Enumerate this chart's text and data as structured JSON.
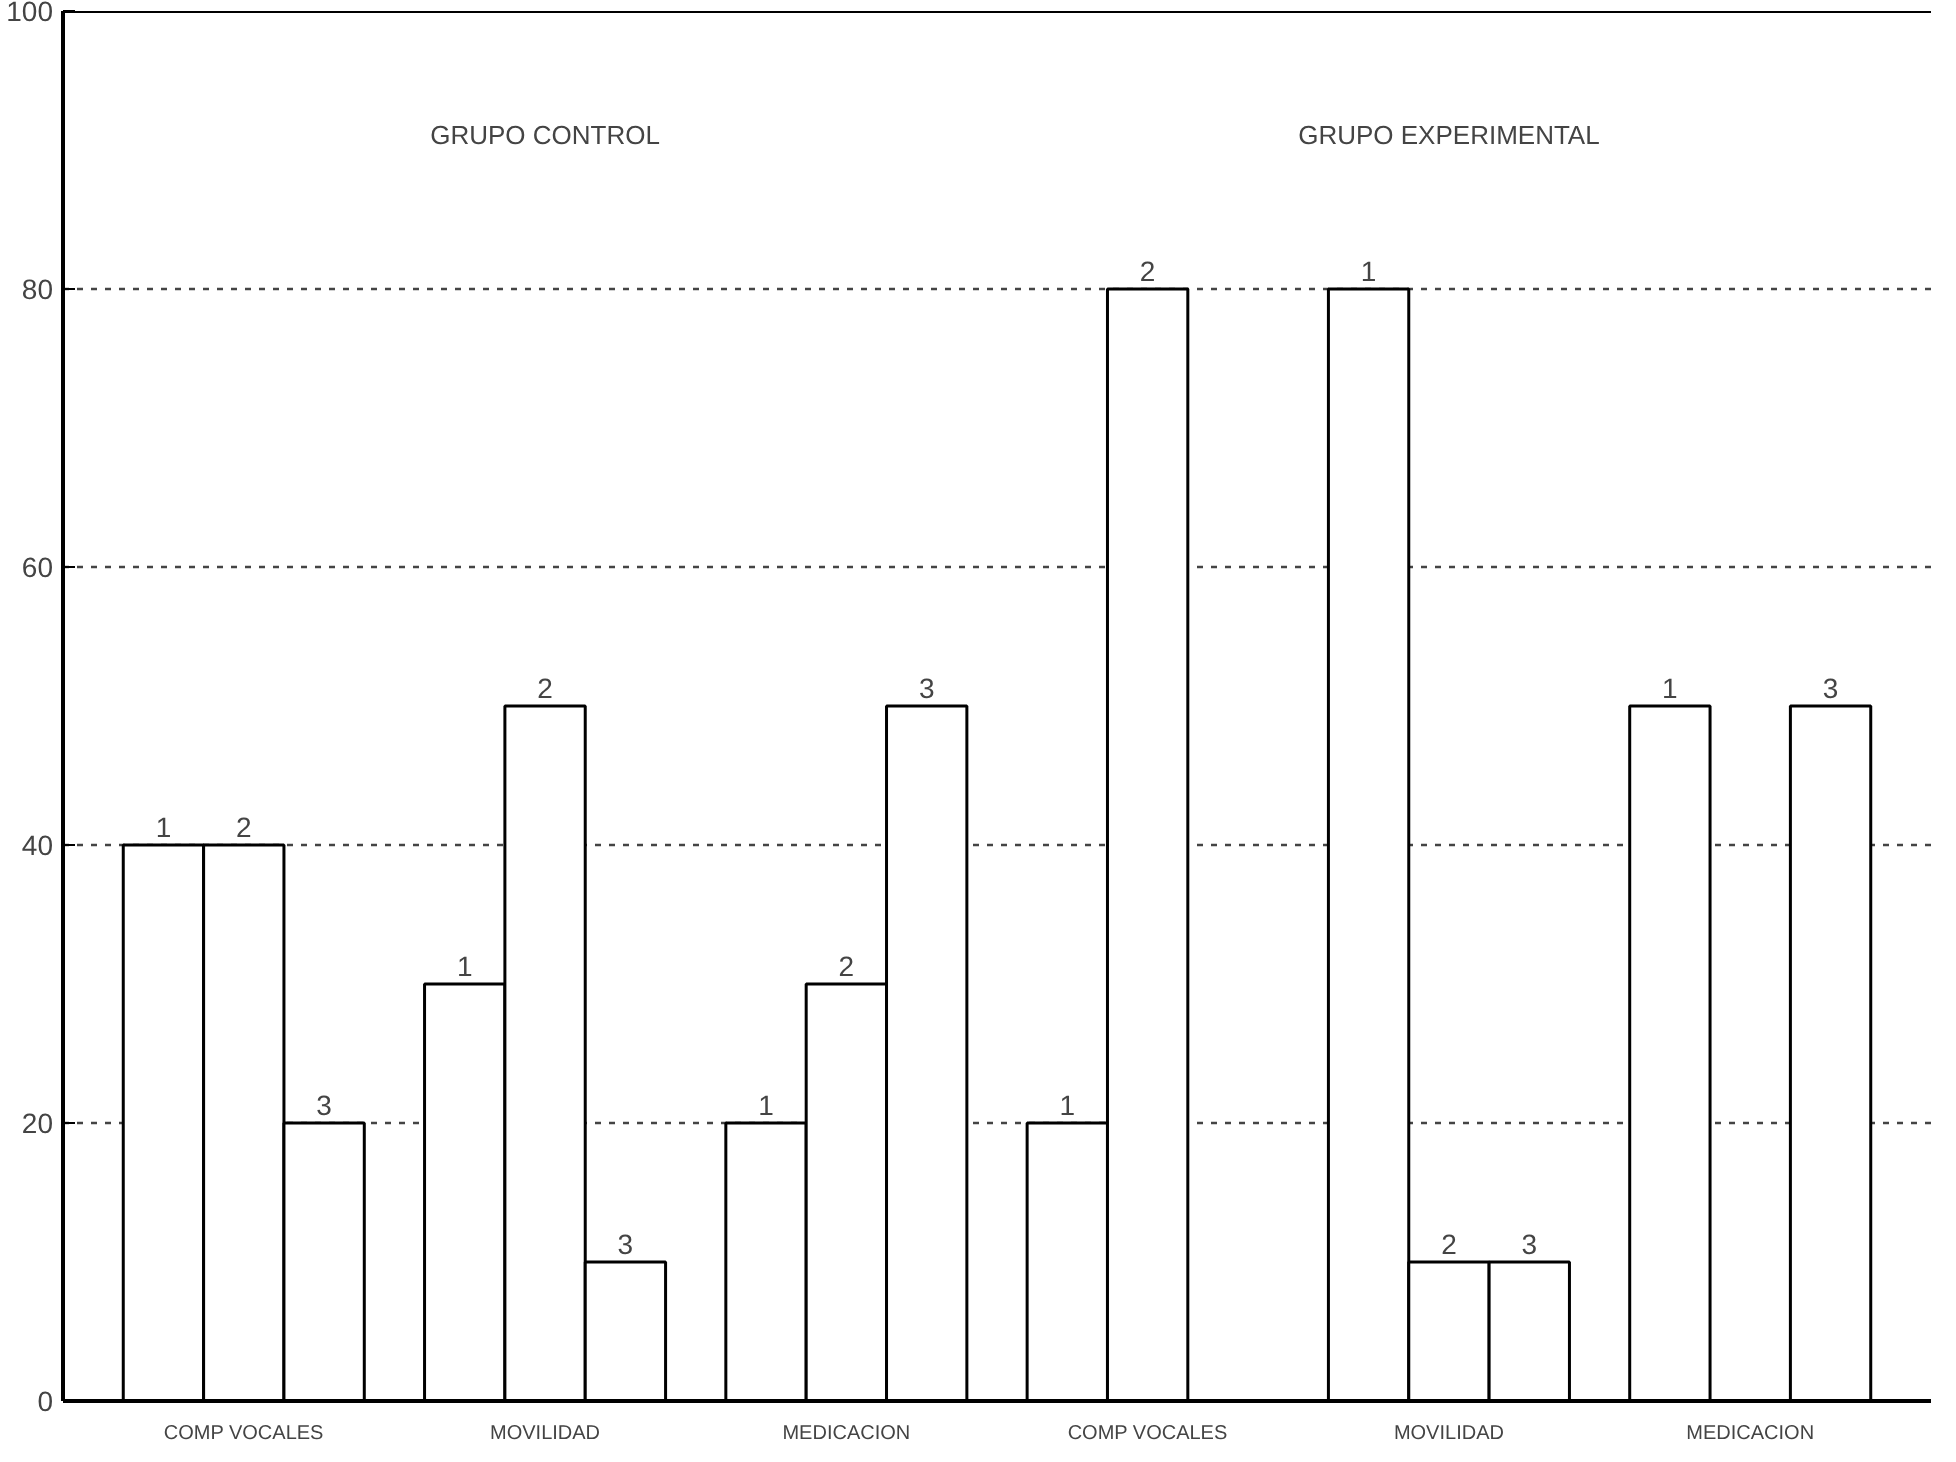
{
  "chart_data": {
    "type": "bar",
    "categories": [
      "COMP VOCALES",
      "MOVILIDAD",
      "MEDICACION",
      "COMP VOCALES",
      "MOVILIDAD",
      "MEDICACION"
    ],
    "series": [
      {
        "name": "1",
        "color": "#ffffff",
        "values": [
          40,
          30,
          20,
          20,
          80,
          50
        ]
      },
      {
        "name": "2",
        "color": "#ffffff",
        "values": [
          40,
          50,
          30,
          80,
          10,
          null
        ]
      },
      {
        "name": "3",
        "color": "#ffffff",
        "values": [
          20,
          10,
          50,
          null,
          10,
          50
        ]
      }
    ],
    "ylim": [
      0,
      100
    ],
    "yticks": [
      0,
      20,
      40,
      60,
      80,
      100
    ],
    "grid": "y",
    "annotations": [
      "GRUPO CONTROL",
      "GRUPO EXPERIMENTAL"
    ]
  }
}
